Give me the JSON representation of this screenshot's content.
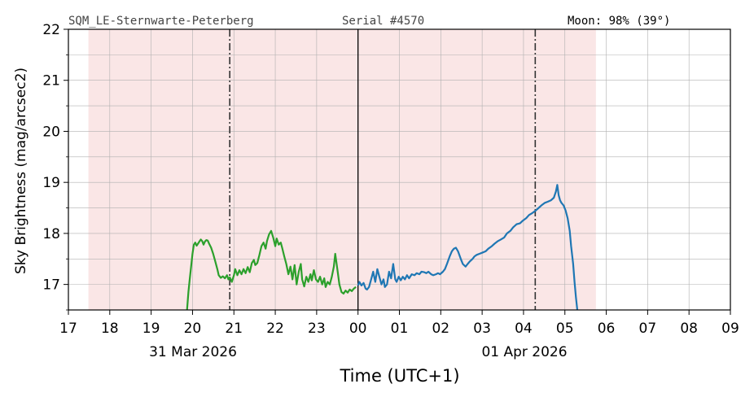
{
  "header": {
    "station": "SQM_LE-Sternwarte-Peterberg",
    "serial": "Serial #4570",
    "moon": "Moon: 98% (39°)"
  },
  "chart_data": {
    "type": "line",
    "xlabel": "Time (UTC+1)",
    "ylabel": "Sky Brightness (mag/arcsec2)",
    "xlim": [
      "2026-03-31 17:00",
      "2026-04-01 09:00"
    ],
    "ylim": [
      16.5,
      22
    ],
    "y_ticks": [
      17,
      18,
      19,
      20,
      21,
      22
    ],
    "x_tick_labels": [
      "17",
      "18",
      "19",
      "20",
      "21",
      "22",
      "23",
      "00",
      "01",
      "02",
      "03",
      "04",
      "05",
      "06",
      "07",
      "08",
      "09"
    ],
    "date_labels": [
      {
        "text": "31 Mar 2026",
        "at": "2026-03-31 20:00"
      },
      {
        "text": "01 Apr 2026",
        "at": "2026-04-01 04:00"
      }
    ],
    "grid": true,
    "night_shading": {
      "start": "2026-03-31 17:29",
      "end": "2026-04-01 05:45",
      "color": "#fae6e6"
    },
    "dashdot_lines": [
      "2026-03-31 20:54",
      "2026-04-01 04:17"
    ],
    "midnight_line": "2026-04-01 00:00",
    "series": [
      {
        "color": "#2ca02c",
        "points": [
          [
            "2026-03-31 19:52",
            16.5
          ],
          [
            "2026-03-31 19:54",
            16.85
          ],
          [
            "2026-03-31 19:56",
            17.1
          ],
          [
            "2026-03-31 19:58",
            17.35
          ],
          [
            "2026-03-31 20:00",
            17.6
          ],
          [
            "2026-03-31 20:02",
            17.78
          ],
          [
            "2026-03-31 20:04",
            17.82
          ],
          [
            "2026-03-31 20:06",
            17.76
          ],
          [
            "2026-03-31 20:08",
            17.8
          ],
          [
            "2026-03-31 20:10",
            17.84
          ],
          [
            "2026-03-31 20:12",
            17.88
          ],
          [
            "2026-03-31 20:14",
            17.85
          ],
          [
            "2026-03-31 20:16",
            17.78
          ],
          [
            "2026-03-31 20:18",
            17.84
          ],
          [
            "2026-03-31 20:20",
            17.87
          ],
          [
            "2026-03-31 20:22",
            17.86
          ],
          [
            "2026-03-31 20:24",
            17.8
          ],
          [
            "2026-03-31 20:27",
            17.72
          ],
          [
            "2026-03-31 20:30",
            17.6
          ],
          [
            "2026-03-31 20:33",
            17.45
          ],
          [
            "2026-03-31 20:36",
            17.3
          ],
          [
            "2026-03-31 20:38",
            17.18
          ],
          [
            "2026-03-31 20:41",
            17.13
          ],
          [
            "2026-03-31 20:44",
            17.16
          ],
          [
            "2026-03-31 20:47",
            17.12
          ],
          [
            "2026-03-31 20:50",
            17.18
          ],
          [
            "2026-03-31 20:52",
            17.1
          ],
          [
            "2026-03-31 20:54",
            17.14
          ],
          [
            "2026-03-31 20:57",
            17.05
          ],
          [
            "2026-03-31 21:00",
            17.18
          ],
          [
            "2026-03-31 21:02",
            17.3
          ],
          [
            "2026-03-31 21:05",
            17.18
          ],
          [
            "2026-03-31 21:08",
            17.28
          ],
          [
            "2026-03-31 21:11",
            17.2
          ],
          [
            "2026-03-31 21:14",
            17.3
          ],
          [
            "2026-03-31 21:17",
            17.22
          ],
          [
            "2026-03-31 21:20",
            17.34
          ],
          [
            "2026-03-31 21:23",
            17.24
          ],
          [
            "2026-03-31 21:26",
            17.42
          ],
          [
            "2026-03-31 21:29",
            17.48
          ],
          [
            "2026-03-31 21:31",
            17.38
          ],
          [
            "2026-03-31 21:34",
            17.42
          ],
          [
            "2026-03-31 21:37",
            17.58
          ],
          [
            "2026-03-31 21:40",
            17.75
          ],
          [
            "2026-03-31 21:43",
            17.82
          ],
          [
            "2026-03-31 21:46",
            17.7
          ],
          [
            "2026-03-31 21:48",
            17.85
          ],
          [
            "2026-03-31 21:51",
            17.98
          ],
          [
            "2026-03-31 21:54",
            18.05
          ],
          [
            "2026-03-31 21:57",
            17.92
          ],
          [
            "2026-03-31 22:00",
            17.75
          ],
          [
            "2026-03-31 22:02",
            17.9
          ],
          [
            "2026-03-31 22:05",
            17.78
          ],
          [
            "2026-03-31 22:08",
            17.82
          ],
          [
            "2026-03-31 22:10",
            17.72
          ],
          [
            "2026-03-31 22:13",
            17.55
          ],
          [
            "2026-03-31 22:16",
            17.4
          ],
          [
            "2026-03-31 22:19",
            17.2
          ],
          [
            "2026-03-31 22:22",
            17.35
          ],
          [
            "2026-03-31 22:25",
            17.1
          ],
          [
            "2026-03-31 22:28",
            17.38
          ],
          [
            "2026-03-31 22:31",
            17.0
          ],
          [
            "2026-03-31 22:34",
            17.25
          ],
          [
            "2026-03-31 22:37",
            17.4
          ],
          [
            "2026-03-31 22:39",
            17.1
          ],
          [
            "2026-03-31 22:42",
            16.96
          ],
          [
            "2026-03-31 22:45",
            17.15
          ],
          [
            "2026-03-31 22:48",
            17.05
          ],
          [
            "2026-03-31 22:51",
            17.2
          ],
          [
            "2026-03-31 22:53",
            17.08
          ],
          [
            "2026-03-31 22:56",
            17.28
          ],
          [
            "2026-03-31 22:59",
            17.1
          ],
          [
            "2026-03-31 23:02",
            17.05
          ],
          [
            "2026-03-31 23:05",
            17.15
          ],
          [
            "2026-03-31 23:08",
            17.0
          ],
          [
            "2026-03-31 23:11",
            17.12
          ],
          [
            "2026-03-31 23:13",
            16.95
          ],
          [
            "2026-03-31 23:16",
            17.05
          ],
          [
            "2026-03-31 23:19",
            17.0
          ],
          [
            "2026-03-31 23:22",
            17.15
          ],
          [
            "2026-03-31 23:25",
            17.35
          ],
          [
            "2026-03-31 23:27",
            17.6
          ],
          [
            "2026-03-31 23:30",
            17.3
          ],
          [
            "2026-03-31 23:33",
            17.0
          ],
          [
            "2026-03-31 23:36",
            16.85
          ],
          [
            "2026-03-31 23:39",
            16.82
          ],
          [
            "2026-03-31 23:42",
            16.88
          ],
          [
            "2026-03-31 23:45",
            16.84
          ],
          [
            "2026-03-31 23:48",
            16.9
          ],
          [
            "2026-03-31 23:51",
            16.87
          ],
          [
            "2026-03-31 23:54",
            16.92
          ],
          [
            "2026-03-31 23:57",
            16.95
          ]
        ]
      },
      {
        "color": "#1f77b4",
        "points": [
          [
            "2026-04-01 00:00",
            16.98
          ],
          [
            "2026-04-01 00:02",
            17.05
          ],
          [
            "2026-04-01 00:05",
            16.98
          ],
          [
            "2026-04-01 00:08",
            17.03
          ],
          [
            "2026-04-01 00:11",
            16.92
          ],
          [
            "2026-04-01 00:13",
            16.9
          ],
          [
            "2026-04-01 00:16",
            16.95
          ],
          [
            "2026-04-01 00:19",
            17.1
          ],
          [
            "2026-04-01 00:22",
            17.25
          ],
          [
            "2026-04-01 00:25",
            17.05
          ],
          [
            "2026-04-01 00:28",
            17.3
          ],
          [
            "2026-04-01 00:31",
            17.15
          ],
          [
            "2026-04-01 00:34",
            17.0
          ],
          [
            "2026-04-01 00:37",
            17.1
          ],
          [
            "2026-04-01 00:39",
            16.95
          ],
          [
            "2026-04-01 00:42",
            17.0
          ],
          [
            "2026-04-01 00:45",
            17.25
          ],
          [
            "2026-04-01 00:48",
            17.12
          ],
          [
            "2026-04-01 00:51",
            17.4
          ],
          [
            "2026-04-01 00:54",
            17.1
          ],
          [
            "2026-04-01 00:56",
            17.05
          ],
          [
            "2026-04-01 00:59",
            17.15
          ],
          [
            "2026-04-01 01:02",
            17.08
          ],
          [
            "2026-04-01 01:05",
            17.15
          ],
          [
            "2026-04-01 01:08",
            17.1
          ],
          [
            "2026-04-01 01:11",
            17.18
          ],
          [
            "2026-04-01 01:14",
            17.12
          ],
          [
            "2026-04-01 01:18",
            17.2
          ],
          [
            "2026-04-01 01:22",
            17.18
          ],
          [
            "2026-04-01 01:25",
            17.22
          ],
          [
            "2026-04-01 01:29",
            17.2
          ],
          [
            "2026-04-01 01:32",
            17.25
          ],
          [
            "2026-04-01 01:36",
            17.24
          ],
          [
            "2026-04-01 01:39",
            17.22
          ],
          [
            "2026-04-01 01:42",
            17.25
          ],
          [
            "2026-04-01 01:46",
            17.2
          ],
          [
            "2026-04-01 01:49",
            17.18
          ],
          [
            "2026-04-01 01:53",
            17.2
          ],
          [
            "2026-04-01 01:56",
            17.22
          ],
          [
            "2026-04-01 01:59",
            17.2
          ],
          [
            "2026-04-01 02:03",
            17.25
          ],
          [
            "2026-04-01 02:06",
            17.3
          ],
          [
            "2026-04-01 02:09",
            17.4
          ],
          [
            "2026-04-01 02:13",
            17.55
          ],
          [
            "2026-04-01 02:16",
            17.65
          ],
          [
            "2026-04-01 02:19",
            17.7
          ],
          [
            "2026-04-01 02:22",
            17.72
          ],
          [
            "2026-04-01 02:25",
            17.65
          ],
          [
            "2026-04-01 02:29",
            17.5
          ],
          [
            "2026-04-01 02:32",
            17.4
          ],
          [
            "2026-04-01 02:36",
            17.35
          ],
          [
            "2026-04-01 02:39",
            17.4
          ],
          [
            "2026-04-01 02:42",
            17.45
          ],
          [
            "2026-04-01 02:46",
            17.5
          ],
          [
            "2026-04-01 02:49",
            17.55
          ],
          [
            "2026-04-01 02:52",
            17.58
          ],
          [
            "2026-04-01 02:56",
            17.6
          ],
          [
            "2026-04-01 03:00",
            17.62
          ],
          [
            "2026-04-01 03:05",
            17.65
          ],
          [
            "2026-04-01 03:09",
            17.7
          ],
          [
            "2026-04-01 03:14",
            17.75
          ],
          [
            "2026-04-01 03:18",
            17.8
          ],
          [
            "2026-04-01 03:23",
            17.85
          ],
          [
            "2026-04-01 03:27",
            17.88
          ],
          [
            "2026-04-01 03:32",
            17.92
          ],
          [
            "2026-04-01 03:36",
            18.0
          ],
          [
            "2026-04-01 03:41",
            18.05
          ],
          [
            "2026-04-01 03:45",
            18.12
          ],
          [
            "2026-04-01 03:50",
            18.18
          ],
          [
            "2026-04-01 03:55",
            18.2
          ],
          [
            "2026-04-01 03:59",
            18.25
          ],
          [
            "2026-04-01 04:04",
            18.3
          ],
          [
            "2026-04-01 04:08",
            18.36
          ],
          [
            "2026-04-01 04:13",
            18.4
          ],
          [
            "2026-04-01 04:17",
            18.44
          ],
          [
            "2026-04-01 04:22",
            18.5
          ],
          [
            "2026-04-01 04:26",
            18.55
          ],
          [
            "2026-04-01 04:31",
            18.6
          ],
          [
            "2026-04-01 04:35",
            18.62
          ],
          [
            "2026-04-01 04:40",
            18.65
          ],
          [
            "2026-04-01 04:44",
            18.7
          ],
          [
            "2026-04-01 04:47",
            18.82
          ],
          [
            "2026-04-01 04:49",
            18.95
          ],
          [
            "2026-04-01 04:51",
            18.75
          ],
          [
            "2026-04-01 04:53",
            18.65
          ],
          [
            "2026-04-01 04:55",
            18.6
          ],
          [
            "2026-04-01 04:58",
            18.55
          ],
          [
            "2026-04-01 05:01",
            18.45
          ],
          [
            "2026-04-01 05:04",
            18.3
          ],
          [
            "2026-04-01 05:07",
            18.05
          ],
          [
            "2026-04-01 05:09",
            17.75
          ],
          [
            "2026-04-01 05:12",
            17.4
          ],
          [
            "2026-04-01 05:14",
            17.05
          ],
          [
            "2026-04-01 05:16",
            16.75
          ],
          [
            "2026-04-01 05:18",
            16.5
          ]
        ]
      }
    ]
  }
}
